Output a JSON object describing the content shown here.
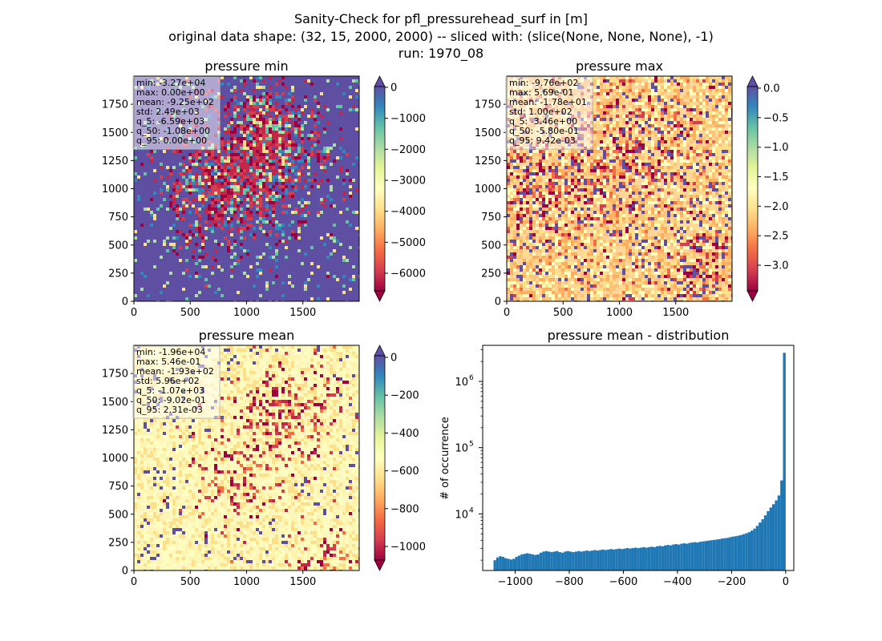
{
  "figure": {
    "suptitle_lines": [
      "Sanity-Check for pfl_pressurehead_surf in [m]",
      "original data shape: (32, 15, 2000, 2000) -- sliced with: (slice(None, None, None), -1)",
      "run: 1970_08"
    ]
  },
  "map_axis_ticks": [
    "0",
    "500",
    "1000",
    "1500"
  ],
  "map_axis_yticks": [
    "0",
    "250",
    "500",
    "750",
    "1000",
    "1250",
    "1500",
    "1750"
  ],
  "panels": {
    "min": {
      "title": "pressure min",
      "stats": [
        "min: -3.27e+04",
        "max: 0.00e+00",
        "mean: -9.25e+02",
        "std: 2.49e+03",
        "q_5: -6.59e+03",
        "q_50: -1.08e+00",
        "q_95: 0.00e+00"
      ],
      "colorbar_ticks": [
        "0",
        "−1000",
        "−2000",
        "−3000",
        "−4000",
        "−5000",
        "−6000"
      ],
      "colormap": "Spectral"
    },
    "max": {
      "title": "pressure max",
      "stats": [
        "min: -9.76e+02",
        "max: 5.69e-01",
        "mean: -1.78e+01",
        "std: 1.00e+02",
        "q_5: -3.46e+00",
        "q_50: -5.80e-01",
        "q_95: 9.42e-03"
      ],
      "colorbar_ticks": [
        "0.0",
        "−0.5",
        "−1.0",
        "−1.5",
        "−2.0",
        "−2.5",
        "−3.0"
      ],
      "colormap": "Spectral"
    },
    "mean": {
      "title": "pressure mean",
      "stats": [
        "min: -1.96e+04",
        "max: 5.46e-01",
        "mean: -1.93e+02",
        "std: 5.96e+02",
        "q_5: -1.07e+03",
        "q_50: -9.02e-01",
        "q_95: 2.31e-03"
      ],
      "colorbar_ticks": [
        "0",
        "−200",
        "−400",
        "−600",
        "−800",
        "−1000"
      ],
      "colormap": "Spectral"
    },
    "hist": {
      "title": "pressure mean - distribution",
      "ylabel": "# of occurrence",
      "xticks": [
        "−1000",
        "−800",
        "−600",
        "−400",
        "−200",
        "0"
      ],
      "yticks": [
        {
          "base": "10",
          "exp": "4"
        },
        {
          "base": "10",
          "exp": "5"
        },
        {
          "base": "10",
          "exp": "6"
        }
      ],
      "bar_color": "#1f77b4"
    }
  },
  "chart_data": [
    {
      "type": "heatmap",
      "title": "pressure min",
      "xlim": [
        0,
        2000
      ],
      "ylim": [
        0,
        2000
      ],
      "colorbar_range": [
        -6590,
        0
      ],
      "colormap": "Spectral",
      "colorbar_extend": "both"
    },
    {
      "type": "heatmap",
      "title": "pressure max",
      "xlim": [
        0,
        2000
      ],
      "ylim": [
        0,
        2000
      ],
      "colorbar_range": [
        -3.46,
        0.00942
      ],
      "colormap": "Spectral",
      "colorbar_extend": "both"
    },
    {
      "type": "heatmap",
      "title": "pressure mean",
      "xlim": [
        0,
        2000
      ],
      "ylim": [
        0,
        2000
      ],
      "colorbar_range": [
        -1070,
        0.00231
      ],
      "colormap": "Spectral",
      "colorbar_extend": "both"
    },
    {
      "type": "bar",
      "title": "pressure mean - distribution",
      "xlabel": "",
      "ylabel": "# of occurrence",
      "xlim": [
        -1120,
        30
      ],
      "ylim": [
        1400,
        3500000
      ],
      "yscale": "log",
      "bins": [
        [
          -1070,
          2000
        ],
        [
          -1060,
          2200
        ],
        [
          -1050,
          2300
        ],
        [
          -1040,
          2250
        ],
        [
          -1030,
          2150
        ],
        [
          -1020,
          2100
        ],
        [
          -1010,
          2050
        ],
        [
          -1000,
          2100
        ],
        [
          -990,
          2250
        ],
        [
          -980,
          2350
        ],
        [
          -970,
          2450
        ],
        [
          -960,
          2500
        ],
        [
          -950,
          2550
        ],
        [
          -940,
          2500
        ],
        [
          -930,
          2450
        ],
        [
          -920,
          2400
        ],
        [
          -910,
          2450
        ],
        [
          -900,
          2600
        ],
        [
          -890,
          2700
        ],
        [
          -880,
          2750
        ],
        [
          -870,
          2700
        ],
        [
          -860,
          2650
        ],
        [
          -850,
          2700
        ],
        [
          -840,
          2750
        ],
        [
          -830,
          2650
        ],
        [
          -820,
          2600
        ],
        [
          -810,
          2700
        ],
        [
          -800,
          2750
        ],
        [
          -790,
          2700
        ],
        [
          -780,
          2650
        ],
        [
          -770,
          2700
        ],
        [
          -760,
          2750
        ],
        [
          -750,
          2700
        ],
        [
          -740,
          2750
        ],
        [
          -730,
          2800
        ],
        [
          -720,
          2750
        ],
        [
          -710,
          2800
        ],
        [
          -700,
          2850
        ],
        [
          -690,
          2800
        ],
        [
          -680,
          2850
        ],
        [
          -670,
          2900
        ],
        [
          -660,
          2850
        ],
        [
          -650,
          2900
        ],
        [
          -640,
          2950
        ],
        [
          -630,
          2900
        ],
        [
          -620,
          2950
        ],
        [
          -610,
          3000
        ],
        [
          -600,
          2950
        ],
        [
          -590,
          3000
        ],
        [
          -580,
          3050
        ],
        [
          -570,
          3000
        ],
        [
          -560,
          3050
        ],
        [
          -550,
          3100
        ],
        [
          -540,
          3050
        ],
        [
          -530,
          3100
        ],
        [
          -520,
          3150
        ],
        [
          -510,
          3100
        ],
        [
          -500,
          3150
        ],
        [
          -490,
          3200
        ],
        [
          -480,
          3150
        ],
        [
          -470,
          3250
        ],
        [
          -460,
          3300
        ],
        [
          -450,
          3250
        ],
        [
          -440,
          3350
        ],
        [
          -430,
          3400
        ],
        [
          -420,
          3350
        ],
        [
          -410,
          3450
        ],
        [
          -400,
          3500
        ],
        [
          -390,
          3450
        ],
        [
          -380,
          3550
        ],
        [
          -370,
          3600
        ],
        [
          -360,
          3550
        ],
        [
          -350,
          3650
        ],
        [
          -340,
          3700
        ],
        [
          -330,
          3750
        ],
        [
          -320,
          3700
        ],
        [
          -310,
          3800
        ],
        [
          -300,
          3850
        ],
        [
          -290,
          3900
        ],
        [
          -280,
          3950
        ],
        [
          -270,
          4000
        ],
        [
          -260,
          4050
        ],
        [
          -250,
          4100
        ],
        [
          -240,
          4150
        ],
        [
          -230,
          4250
        ],
        [
          -220,
          4300
        ],
        [
          -210,
          4350
        ],
        [
          -200,
          4450
        ],
        [
          -190,
          4550
        ],
        [
          -180,
          4600
        ],
        [
          -170,
          4700
        ],
        [
          -160,
          4800
        ],
        [
          -150,
          4950
        ],
        [
          -140,
          5100
        ],
        [
          -130,
          5300
        ],
        [
          -120,
          5600
        ],
        [
          -110,
          6000
        ],
        [
          -100,
          6600
        ],
        [
          -90,
          7400
        ],
        [
          -80,
          8300
        ],
        [
          -70,
          9500
        ],
        [
          -60,
          11000
        ],
        [
          -50,
          12500
        ],
        [
          -40,
          14000
        ],
        [
          -30,
          16000
        ],
        [
          -20,
          19000
        ],
        [
          -10,
          32000
        ],
        [
          0,
          2700000
        ]
      ]
    }
  ]
}
